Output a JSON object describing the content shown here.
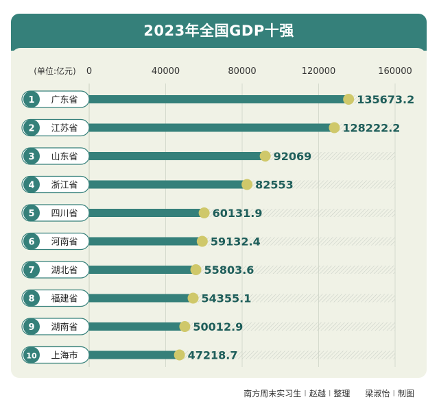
{
  "chart_data": {
    "type": "bar",
    "orientation": "horizontal",
    "title": "2023年全国GDP十强",
    "unit_label": "(单位:亿元)",
    "xlim": [
      0,
      160000
    ],
    "ticks": [
      "0",
      "40000",
      "80000",
      "120000",
      "160000"
    ],
    "tick_values": [
      0,
      40000,
      80000,
      120000,
      160000
    ],
    "ranks": [
      "1",
      "2",
      "3",
      "4",
      "5",
      "6",
      "7",
      "8",
      "9",
      "10"
    ],
    "categories": [
      "广东省",
      "江苏省",
      "山东省",
      "浙江省",
      "四川省",
      "河南省",
      "湖北省",
      "福建省",
      "湖南省",
      "上海市"
    ],
    "values": [
      135673.2,
      128222.2,
      92069,
      82553,
      60131.9,
      59132.4,
      55803.6,
      54355.1,
      50012.9,
      47218.7
    ],
    "value_labels": [
      "135673.2",
      "128222.2",
      "92069",
      "82553",
      "60131.9",
      "59132.4",
      "55803.6",
      "54355.1",
      "50012.9",
      "47218.7"
    ]
  },
  "footer": {
    "publisher": "南方周末实习生",
    "author": "赵越",
    "role": "整理",
    "designer": "梁淑怡",
    "design_role": "制图",
    "separator": "I"
  },
  "colors": {
    "teal": "#35807a",
    "dot": "#cfc86a",
    "card": "#f0f2e6",
    "value_text": "#1e5e5a"
  }
}
